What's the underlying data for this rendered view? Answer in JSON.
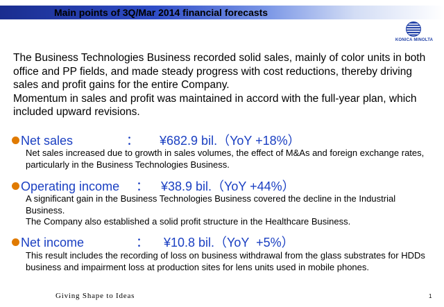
{
  "header": {
    "title": "Main points of 3Q/Mar 2014 financial forecasts",
    "logo_text": "KONICA MINOLTA"
  },
  "intro": [
    "The Business Technologies Business recorded solid sales, mainly of color units in both office and PP fields, and made steady progress with cost reductions, thereby driving sales and profit gains for the entire Company.",
    "Momentum in sales and profit was maintained in accord with the full-year plan, which included upward revisions."
  ],
  "points": [
    {
      "label": "Net sales",
      "sep": "：",
      "value": "¥682.9 bil.（YoY +18%）",
      "lines": [
        "Net sales increased due to growth in sales volumes, the effect of M&As and foreign exchange rates, particularly in the Business Technologies Business."
      ]
    },
    {
      "label": "Operating income",
      "sep": "：",
      "value": "¥38.9 bil.（YoY +44%）",
      "lines": [
        "A significant gain in the Business Technologies Business covered the decline in the Industrial Business.",
        "The Company also established a solid profit structure in the Healthcare Business."
      ]
    },
    {
      "label": "Net income",
      "sep": "：",
      "value": "¥10.8 bil.（YoY  +5%）",
      "lines": [
        "This result includes the recording of loss on business withdrawal from the glass substrates for HDDs business and impairment loss at production sites for lens units used in mobile phones."
      ]
    }
  ],
  "footer": {
    "tagline": "Giving Shape to Ideas",
    "page": "1"
  },
  "colors": {
    "heading_blue": "#1a3fc2",
    "bullet_orange": "#e07a00",
    "bar_dark": "#1a2d8f"
  }
}
